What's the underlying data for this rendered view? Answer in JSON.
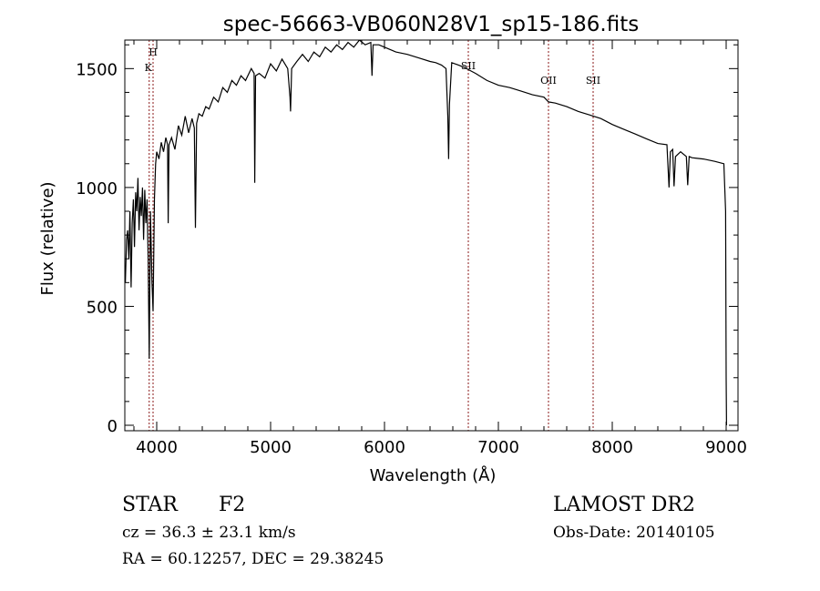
{
  "chart_data": {
    "type": "line",
    "title": "spec-56663-VB060N28V1_sp15-186.fits",
    "xlabel": "Wavelength (Å)",
    "ylabel": "Flux (relative)",
    "xlim": [
      3720,
      9104
    ],
    "ylim": [
      -23,
      1620
    ],
    "xticks": [
      4000,
      5000,
      6000,
      7000,
      8000,
      9000
    ],
    "yticks": [
      0,
      500,
      1000,
      1500
    ],
    "grid": false,
    "series": [
      {
        "name": "spectrum",
        "x": [
          3700,
          3705,
          3715,
          3725,
          3735,
          3745,
          3755,
          3765,
          3775,
          3785,
          3795,
          3805,
          3815,
          3825,
          3835,
          3845,
          3855,
          3865,
          3875,
          3885,
          3895,
          3905,
          3915,
          3925,
          3934,
          3945,
          3958,
          3968,
          3980,
          3990,
          4000,
          4020,
          4040,
          4060,
          4080,
          4095,
          4101,
          4108,
          4130,
          4160,
          4190,
          4220,
          4250,
          4280,
          4310,
          4330,
          4340,
          4350,
          4370,
          4400,
          4430,
          4460,
          4500,
          4540,
          4580,
          4620,
          4660,
          4700,
          4740,
          4780,
          4830,
          4855,
          4861,
          4868,
          4900,
          4950,
          5000,
          5050,
          5100,
          5150,
          5170,
          5175,
          5185,
          5230,
          5280,
          5330,
          5380,
          5430,
          5480,
          5530,
          5580,
          5630,
          5680,
          5730,
          5780,
          5830,
          5880,
          5890,
          5900,
          5950,
          6000,
          6100,
          6200,
          6300,
          6400,
          6450,
          6500,
          6540,
          6556,
          6563,
          6570,
          6590,
          6650,
          6700,
          6800,
          6900,
          7000,
          7100,
          7200,
          7300,
          7400,
          7440,
          7500,
          7600,
          7700,
          7800,
          7900,
          8000,
          8100,
          8200,
          8300,
          8400,
          8480,
          8498,
          8510,
          8530,
          8542,
          8555,
          8600,
          8650,
          8662,
          8675,
          8700,
          8800,
          8900,
          8980,
          8995,
          9000,
          9003
        ],
        "y": [
          40,
          350,
          700,
          600,
          780,
          820,
          700,
          900,
          580,
          850,
          950,
          750,
          980,
          900,
          1040,
          820,
          960,
          880,
          1000,
          780,
          990,
          850,
          950,
          700,
          280,
          900,
          600,
          480,
          950,
          1100,
          1150,
          1120,
          1190,
          1150,
          1210,
          1180,
          850,
          1180,
          1210,
          1160,
          1260,
          1220,
          1300,
          1230,
          1290,
          1250,
          830,
          1270,
          1310,
          1300,
          1340,
          1330,
          1380,
          1360,
          1420,
          1400,
          1450,
          1430,
          1470,
          1450,
          1500,
          1480,
          1020,
          1470,
          1480,
          1460,
          1520,
          1490,
          1540,
          1500,
          1380,
          1320,
          1500,
          1530,
          1560,
          1530,
          1570,
          1550,
          1590,
          1570,
          1600,
          1580,
          1610,
          1590,
          1620,
          1600,
          1610,
          1470,
          1600,
          1600,
          1590,
          1570,
          1560,
          1545,
          1530,
          1525,
          1515,
          1500,
          1300,
          1120,
          1350,
          1525,
          1515,
          1505,
          1480,
          1450,
          1430,
          1420,
          1405,
          1390,
          1380,
          1360,
          1355,
          1340,
          1320,
          1305,
          1290,
          1265,
          1245,
          1225,
          1205,
          1185,
          1180,
          1000,
          1150,
          1160,
          1005,
          1130,
          1150,
          1130,
          1010,
          1130,
          1125,
          1120,
          1110,
          1100,
          900,
          200,
          0
        ]
      }
    ],
    "line_markers": [
      {
        "label": "H",
        "wavelength": 3968
      },
      {
        "label": "K",
        "wavelength": 3934
      },
      {
        "label": "SII",
        "wavelength": 6736
      },
      {
        "label": "OII",
        "wavelength": 7440
      },
      {
        "label": "SII",
        "wavelength": 7832
      }
    ]
  },
  "info": {
    "class": "STAR",
    "subclass": "F2",
    "survey": "LAMOST DR2",
    "cz": "cz = 36.3 ± 23.1 km/s",
    "obs_date": "Obs-Date: 20140105",
    "coords": "RA =  60.12257, DEC =  29.38245"
  },
  "colors": {
    "line": "#000000",
    "marker": "#8b1a1a"
  }
}
